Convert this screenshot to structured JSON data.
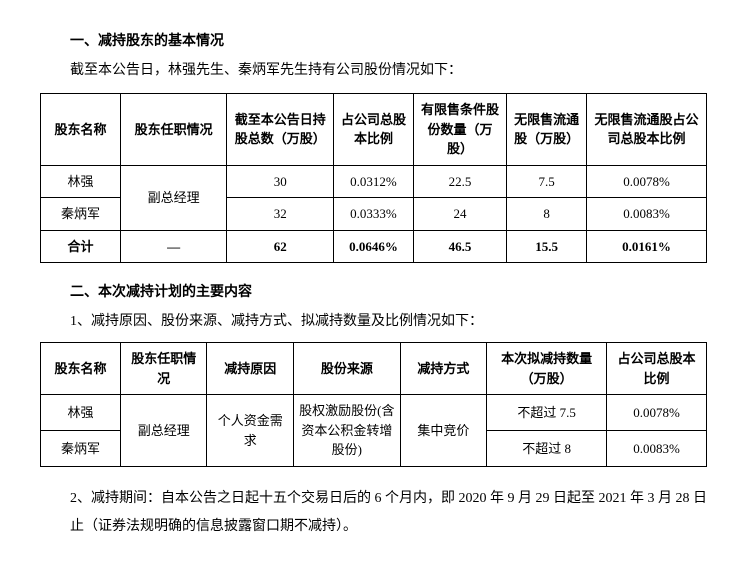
{
  "section1": {
    "title": "一、减持股东的基本情况",
    "intro": "截至本公告日，林强先生、秦炳军先生持有公司股份情况如下：",
    "table": {
      "columns": [
        "股东名称",
        "股东任职情况",
        "截至本公告日持股总数（万股）",
        "占公司总股本比例",
        "有限售条件股份数量（万股）",
        "无限售流通股（万股）",
        "无限售流通股占公司总股本比例"
      ],
      "col_widths": [
        "12%",
        "16%",
        "16%",
        "12%",
        "14%",
        "12%",
        "18%"
      ],
      "rows": [
        {
          "name": "林强",
          "position": "副总经理",
          "total": "30",
          "pct": "0.0312%",
          "restricted": "22.5",
          "unrestricted": "7.5",
          "unres_pct": "0.0078%"
        },
        {
          "name": "秦炳军",
          "position": "",
          "total": "32",
          "pct": "0.0333%",
          "restricted": "24",
          "unrestricted": "8",
          "unres_pct": "0.0083%"
        }
      ],
      "sum": {
        "name": "合计",
        "position": "—",
        "total": "62",
        "pct": "0.0646%",
        "restricted": "46.5",
        "unrestricted": "15.5",
        "unres_pct": "0.0161%"
      }
    }
  },
  "section2": {
    "title": "二、本次减持计划的主要内容",
    "intro": "1、减持原因、股份来源、减持方式、拟减持数量及比例情况如下：",
    "table": {
      "columns": [
        "股东名称",
        "股东任职情况",
        "减持原因",
        "股份来源",
        "减持方式",
        "本次拟减持数量（万股）",
        "占公司总股本比例"
      ],
      "col_widths": [
        "12%",
        "13%",
        "13%",
        "16%",
        "13%",
        "18%",
        "15%"
      ],
      "rows": [
        {
          "name": "林强",
          "position": "副总经理",
          "reason": "个人资金需求",
          "source": "股权激励股份(含资本公积金转增股份)",
          "method": "集中竞价",
          "qty": "不超过 7.5",
          "pct": "0.0078%"
        },
        {
          "name": "秦炳军",
          "position": "",
          "reason": "",
          "source": "",
          "method": "",
          "qty": "不超过 8",
          "pct": "0.0083%"
        }
      ]
    },
    "footnote": "2、减持期间：自本公告之日起十五个交易日后的 6 个月内，即 2020 年 9 月 29 日起至 2021 年 3 月 28 日止（证券法规明确的信息披露窗口期不减持）。"
  }
}
